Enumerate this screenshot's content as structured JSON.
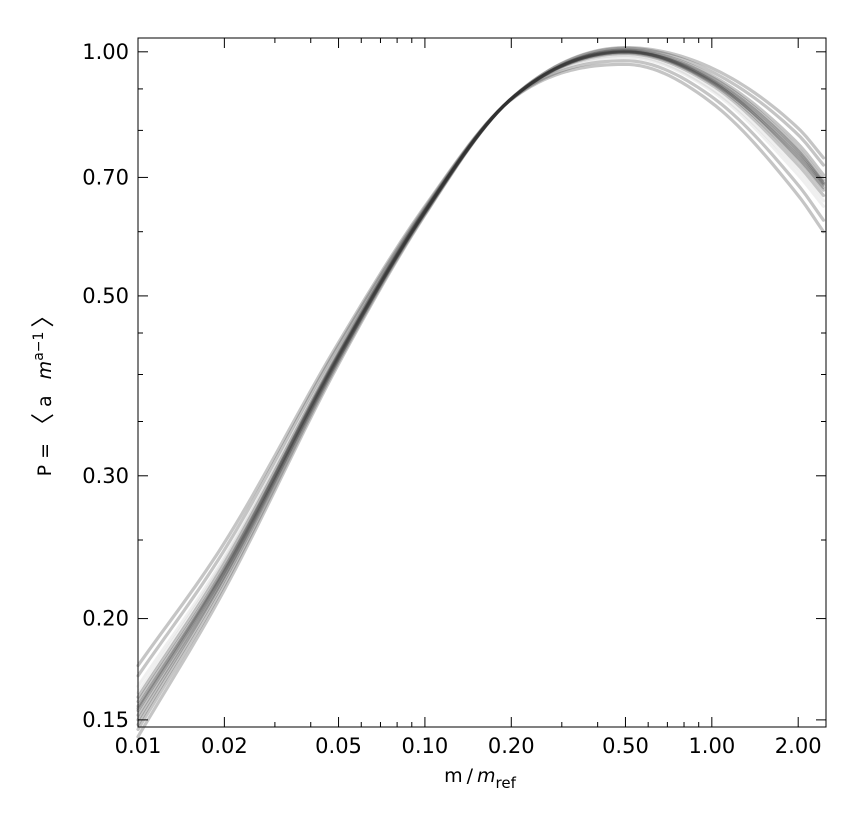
{
  "chart_data": {
    "type": "line",
    "xscale": "log",
    "yscale": "log",
    "xlim": [
      0.01,
      2.5
    ],
    "ylim": [
      0.147,
      1.04
    ],
    "xticks": [
      {
        "value": 0.01,
        "label": "0.01"
      },
      {
        "value": 0.02,
        "label": "0.02"
      },
      {
        "value": 0.05,
        "label": "0.05"
      },
      {
        "value": 0.1,
        "label": "0.10"
      },
      {
        "value": 0.2,
        "label": "0.20"
      },
      {
        "value": 0.5,
        "label": "0.50"
      },
      {
        "value": 1.0,
        "label": "1.00"
      },
      {
        "value": 2.0,
        "label": "2.00"
      }
    ],
    "yticks": [
      {
        "value": 0.15,
        "label": "0.15"
      },
      {
        "value": 0.2,
        "label": "0.20"
      },
      {
        "value": 0.3,
        "label": "0.30"
      },
      {
        "value": 0.5,
        "label": "0.50"
      },
      {
        "value": 0.7,
        "label": "0.70"
      },
      {
        "value": 1.0,
        "label": "1.00"
      }
    ],
    "xlabel": {
      "pre": "m",
      "slash": "/",
      "m": "m",
      "sub": "ref"
    },
    "ylabel": {
      "pre": "P = ",
      "open": "〈",
      "a": "a",
      "m": "m",
      "sup": "a−1",
      "close": "〉"
    },
    "series_color": "#303030",
    "series_style": "ensemble of semi-transparent grey curves",
    "series": [
      {
        "x": [
          0.01,
          0.02,
          0.05,
          0.1,
          0.2,
          0.5,
          1.0,
          2.0,
          2.45
        ],
        "y": [
          0.155,
          0.229,
          0.422,
          0.635,
          0.875,
          1.0,
          0.92,
          0.74,
          0.68
        ]
      },
      {
        "x": [
          0.01,
          0.02,
          0.05,
          0.1,
          0.2,
          0.5,
          1.0,
          2.0,
          2.45
        ],
        "y": [
          0.148,
          0.223,
          0.418,
          0.633,
          0.875,
          1.0,
          0.925,
          0.755,
          0.69
        ]
      },
      {
        "x": [
          0.01,
          0.02,
          0.05,
          0.1,
          0.2,
          0.5,
          1.0,
          2.0,
          2.45
        ],
        "y": [
          0.16,
          0.234,
          0.426,
          0.638,
          0.875,
          0.995,
          0.91,
          0.725,
          0.665
        ]
      },
      {
        "x": [
          0.01,
          0.02,
          0.05,
          0.1,
          0.2,
          0.5,
          1.0,
          2.0,
          2.45
        ],
        "y": [
          0.152,
          0.226,
          0.42,
          0.634,
          0.875,
          1.005,
          0.935,
          0.77,
          0.705
        ]
      },
      {
        "x": [
          0.01,
          0.02,
          0.05,
          0.1,
          0.2,
          0.5,
          1.0,
          2.0,
          2.45
        ],
        "y": [
          0.165,
          0.238,
          0.43,
          0.64,
          0.874,
          0.985,
          0.895,
          0.705,
          0.645
        ]
      },
      {
        "x": [
          0.01,
          0.02,
          0.05,
          0.1,
          0.2,
          0.5,
          1.0,
          2.0,
          2.45
        ],
        "y": [
          0.146,
          0.22,
          0.415,
          0.631,
          0.876,
          1.01,
          0.945,
          0.79,
          0.725
        ]
      },
      {
        "x": [
          0.01,
          0.02,
          0.05,
          0.1,
          0.2,
          0.5,
          1.0,
          2.0,
          2.45
        ],
        "y": [
          0.17,
          0.243,
          0.434,
          0.642,
          0.874,
          0.975,
          0.88,
          0.685,
          0.62
        ]
      },
      {
        "x": [
          0.01,
          0.02,
          0.05,
          0.1,
          0.2,
          0.5,
          1.0,
          2.0,
          2.45
        ],
        "y": [
          0.158,
          0.231,
          0.423,
          0.636,
          0.875,
          0.998,
          0.915,
          0.735,
          0.675
        ]
      },
      {
        "x": [
          0.01,
          0.02,
          0.05,
          0.1,
          0.2,
          0.5,
          1.0,
          2.0,
          2.45
        ],
        "y": [
          0.15,
          0.225,
          0.419,
          0.634,
          0.875,
          1.003,
          0.93,
          0.76,
          0.695
        ]
      },
      {
        "x": [
          0.01,
          0.02,
          0.05,
          0.1,
          0.2,
          0.5,
          1.0,
          2.0,
          2.45
        ],
        "y": [
          0.162,
          0.236,
          0.428,
          0.639,
          0.875,
          0.99,
          0.9,
          0.715,
          0.655
        ]
      },
      {
        "x": [
          0.01,
          0.02,
          0.05,
          0.1,
          0.2,
          0.5,
          1.0,
          2.0,
          2.45
        ],
        "y": [
          0.143,
          0.217,
          0.412,
          0.629,
          0.876,
          1.012,
          0.955,
          0.805,
          0.74
        ]
      },
      {
        "x": [
          0.01,
          0.02,
          0.05,
          0.1,
          0.2,
          0.5,
          1.0,
          2.0,
          2.45
        ],
        "y": [
          0.175,
          0.248,
          0.438,
          0.645,
          0.873,
          0.965,
          0.865,
          0.665,
          0.6
        ]
      },
      {
        "x": [
          0.01,
          0.02,
          0.05,
          0.1,
          0.2,
          0.5,
          1.0,
          2.0,
          2.45
        ],
        "y": [
          0.156,
          0.23,
          0.424,
          0.637,
          0.875,
          1.0,
          0.918,
          0.745,
          0.685
        ]
      },
      {
        "x": [
          0.01,
          0.02,
          0.05,
          0.1,
          0.2,
          0.5,
          1.0,
          2.0,
          2.45
        ],
        "y": [
          0.154,
          0.228,
          0.421,
          0.635,
          0.875,
          1.002,
          0.922,
          0.75,
          0.688
        ]
      }
    ]
  }
}
